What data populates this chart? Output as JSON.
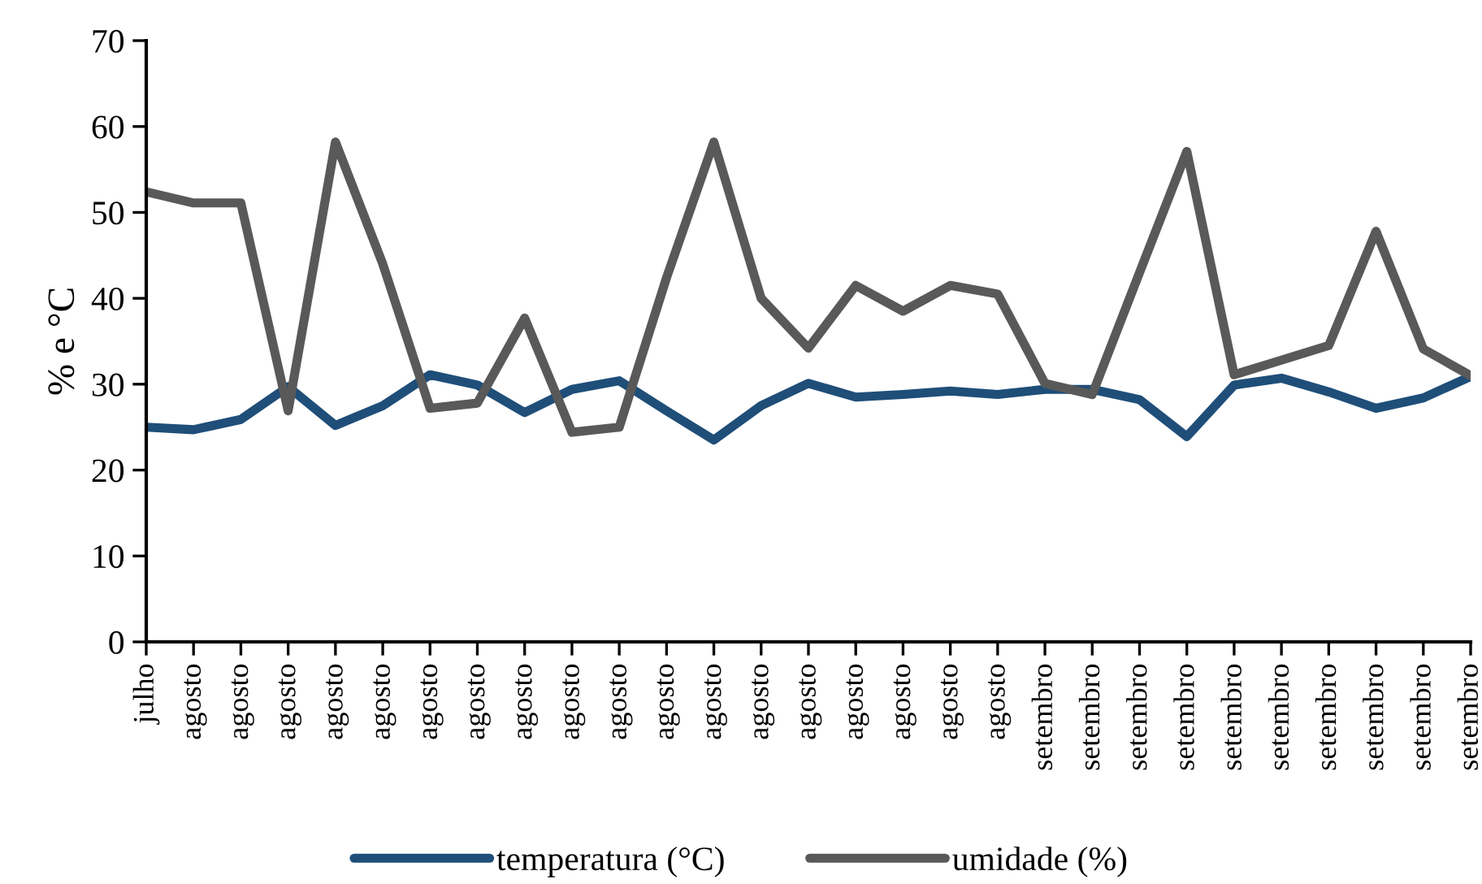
{
  "chart_data": {
    "type": "line",
    "ylabel": "% e °C",
    "categories": [
      "julho",
      "agosto",
      "agosto",
      "agosto",
      "agosto",
      "agosto",
      "agosto",
      "agosto",
      "agosto",
      "agosto",
      "agosto",
      "agosto",
      "agosto",
      "agosto",
      "agosto",
      "agosto",
      "agosto",
      "agosto",
      "agosto",
      "setembro",
      "setembro",
      "setembro",
      "setembro",
      "setembro",
      "setembro",
      "setembro",
      "setembro",
      "setembro",
      "setembro"
    ],
    "series": [
      {
        "name": "temperatura (°C)",
        "color": "#1f4e79",
        "values": [
          25,
          24.7,
          25.9,
          29.7,
          25.2,
          27.5,
          31.1,
          29.9,
          26.7,
          29.4,
          30.4,
          26.9,
          23.5,
          27.5,
          30.1,
          28.5,
          28.8,
          29.2,
          28.8,
          29.4,
          29.4,
          28.2,
          23.9,
          29.9,
          30.7,
          29.1,
          27.2,
          28.4,
          30.9
        ]
      },
      {
        "name": "umidade (%)",
        "color": "#595959",
        "values": [
          52.4,
          51.1,
          51.1,
          26.9,
          58.2,
          44,
          27.2,
          27.8,
          37.7,
          24.4,
          25,
          42.4,
          58.2,
          40,
          34.2,
          41.5,
          38.5,
          41.5,
          40.5,
          30.1,
          28.8,
          43,
          57.1,
          31.1,
          32.8,
          34.5,
          47.8,
          34.1,
          31
        ]
      }
    ],
    "ylim": [
      0,
      70
    ],
    "yticks": [
      0,
      10,
      20,
      30,
      40,
      50,
      60,
      70
    ],
    "grid": false,
    "legend": "bottom",
    "marker": "none",
    "line_style": "solid"
  }
}
